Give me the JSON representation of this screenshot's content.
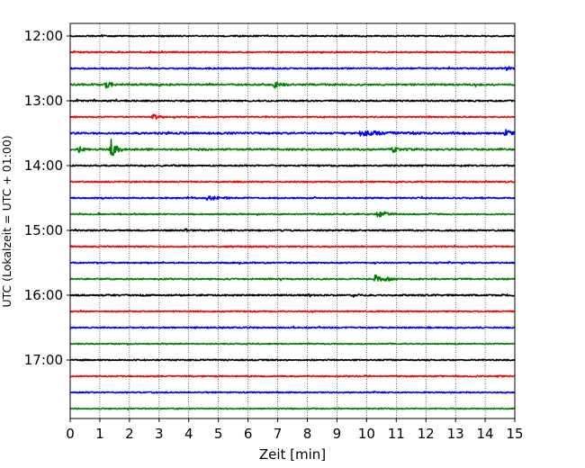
{
  "chart_data": {
    "type": "line",
    "xlabel": "Zeit  [min]",
    "ylabel": "UTC (Lokalzeit = UTC + 01:00)",
    "xlim": [
      0,
      15
    ],
    "x_ticks": [
      "0",
      "1",
      "2",
      "3",
      "4",
      "5",
      "6",
      "7",
      "8",
      "9",
      "10",
      "11",
      "12",
      "13",
      "14",
      "15"
    ],
    "y_ticks": [
      "12:00",
      "13:00",
      "14:00",
      "15:00",
      "16:00",
      "17:00"
    ],
    "trace_interval_min": 15,
    "trace_count": 24,
    "grid": "vertical dotted",
    "line_colors": [
      "#000000",
      "#ff0000",
      "#0000ff",
      "#008000"
    ],
    "traces": [
      {
        "start": "12:00",
        "color": "#000000",
        "noise": 0.55,
        "events": []
      },
      {
        "start": "12:15",
        "color": "#ff0000",
        "noise": 0.5,
        "events": []
      },
      {
        "start": "12:30",
        "color": "#0000ff",
        "noise": 0.6,
        "events": [
          {
            "t": 14.7,
            "amp": 2.0,
            "dur": 0.4
          }
        ]
      },
      {
        "start": "12:45",
        "color": "#008000",
        "noise": 0.7,
        "events": [
          {
            "t": 1.2,
            "amp": 4.5,
            "dur": 0.35
          },
          {
            "t": 6.9,
            "amp": 3.5,
            "dur": 0.5
          }
        ]
      },
      {
        "start": "13:00",
        "color": "#000000",
        "noise": 0.6,
        "events": []
      },
      {
        "start": "13:15",
        "color": "#ff0000",
        "noise": 0.5,
        "events": [
          {
            "t": 2.8,
            "amp": 3.5,
            "dur": 0.4
          }
        ]
      },
      {
        "start": "13:30",
        "color": "#0000ff",
        "noise": 0.75,
        "events": [
          {
            "t": 9.8,
            "amp": 2.5,
            "dur": 2.0
          },
          {
            "t": 14.7,
            "amp": 3.0,
            "dur": 0.4
          }
        ]
      },
      {
        "start": "13:45",
        "color": "#008000",
        "noise": 0.75,
        "events": [
          {
            "t": 0.3,
            "amp": 3.0,
            "dur": 0.35
          },
          {
            "t": 1.4,
            "amp": 14.0,
            "dur": 0.35
          },
          {
            "t": 10.9,
            "amp": 2.5,
            "dur": 0.6
          }
        ]
      },
      {
        "start": "14:00",
        "color": "#000000",
        "noise": 0.6,
        "events": []
      },
      {
        "start": "14:15",
        "color": "#ff0000",
        "noise": 0.5,
        "events": []
      },
      {
        "start": "14:30",
        "color": "#0000ff",
        "noise": 0.55,
        "events": [
          {
            "t": 4.6,
            "amp": 2.5,
            "dur": 0.9
          }
        ]
      },
      {
        "start": "14:45",
        "color": "#008000",
        "noise": 0.5,
        "events": [
          {
            "t": 10.4,
            "amp": 5.0,
            "dur": 0.6
          }
        ]
      },
      {
        "start": "15:00",
        "color": "#000000",
        "noise": 0.6,
        "events": [
          {
            "t": 3.9,
            "amp": 2.0,
            "dur": 0.25
          }
        ]
      },
      {
        "start": "15:15",
        "color": "#ff0000",
        "noise": 0.55,
        "events": []
      },
      {
        "start": "15:30",
        "color": "#0000ff",
        "noise": 0.5,
        "events": []
      },
      {
        "start": "15:45",
        "color": "#008000",
        "noise": 0.55,
        "events": [
          {
            "t": 10.3,
            "amp": 5.0,
            "dur": 0.8
          }
        ]
      },
      {
        "start": "16:00",
        "color": "#000000",
        "noise": 0.65,
        "events": []
      },
      {
        "start": "16:15",
        "color": "#ff0000",
        "noise": 0.5,
        "events": []
      },
      {
        "start": "16:30",
        "color": "#0000ff",
        "noise": 0.55,
        "events": []
      },
      {
        "start": "16:45",
        "color": "#008000",
        "noise": 0.45,
        "events": []
      },
      {
        "start": "17:00",
        "color": "#000000",
        "noise": 0.55,
        "events": []
      },
      {
        "start": "17:15",
        "color": "#ff0000",
        "noise": 0.5,
        "events": []
      },
      {
        "start": "17:30",
        "color": "#0000ff",
        "noise": 0.5,
        "events": []
      },
      {
        "start": "17:45",
        "color": "#008000",
        "noise": 0.45,
        "events": []
      }
    ]
  }
}
